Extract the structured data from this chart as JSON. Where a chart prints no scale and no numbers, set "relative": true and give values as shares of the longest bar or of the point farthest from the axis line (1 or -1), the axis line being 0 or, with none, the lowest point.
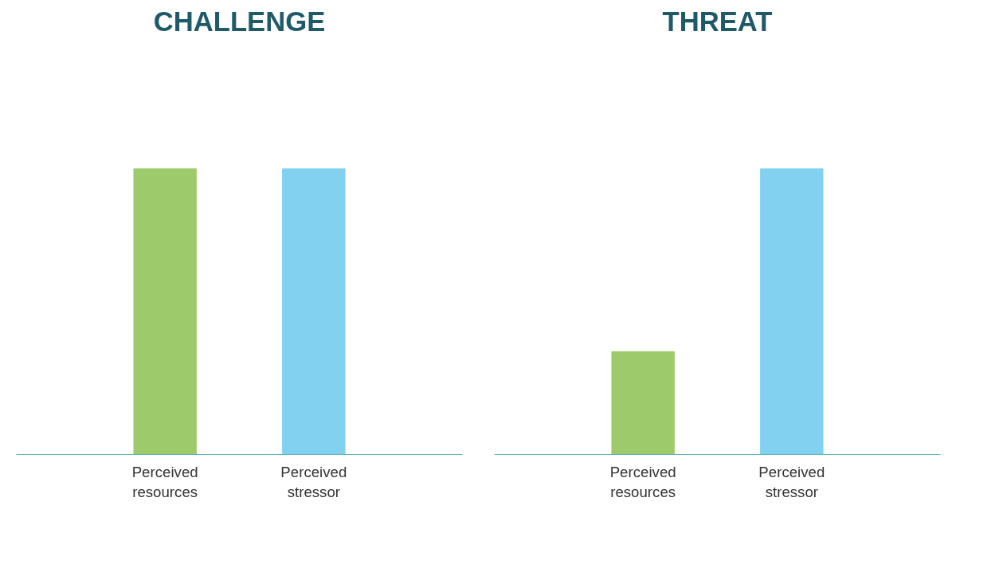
{
  "chart_data": [
    {
      "type": "bar",
      "title": "CHALLENGE",
      "relative": true,
      "categories": [
        "Perceived resources",
        "Perceived stressor"
      ],
      "values": [
        1,
        1
      ],
      "colors": [
        "#9dcb6b",
        "#82d1f1"
      ]
    },
    {
      "type": "bar",
      "title": "THREAT",
      "relative": true,
      "categories": [
        "Perceived resources",
        "Perceived stressor"
      ],
      "values": [
        0.36,
        1
      ],
      "colors": [
        "#9dcb6b",
        "#82d1f1"
      ]
    }
  ]
}
